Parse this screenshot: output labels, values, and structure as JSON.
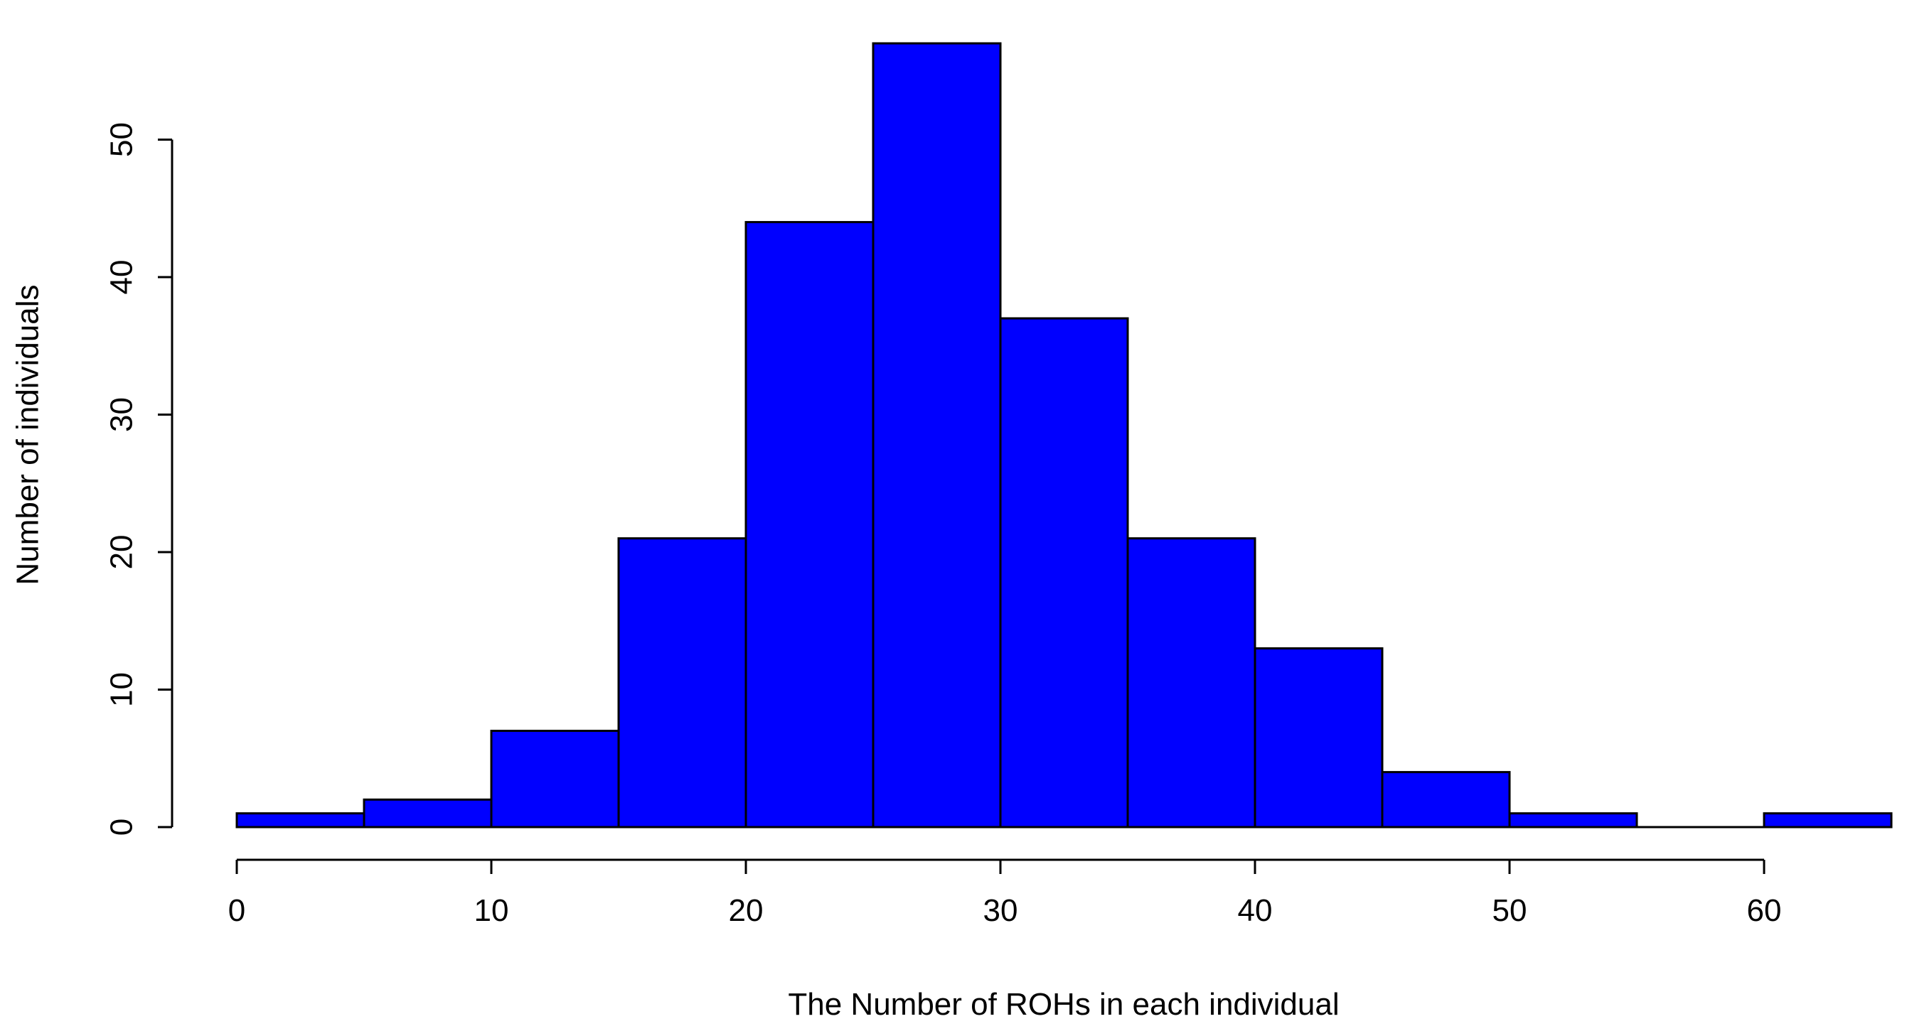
{
  "chart_data": {
    "type": "bar",
    "title": "",
    "xlabel": "The Number of ROHs in each individual",
    "ylabel": "Number of individuals",
    "bins": [
      {
        "start": 0,
        "end": 5,
        "count": 1
      },
      {
        "start": 5,
        "end": 10,
        "count": 2
      },
      {
        "start": 10,
        "end": 15,
        "count": 7
      },
      {
        "start": 15,
        "end": 20,
        "count": 21
      },
      {
        "start": 20,
        "end": 25,
        "count": 44
      },
      {
        "start": 25,
        "end": 30,
        "count": 57
      },
      {
        "start": 30,
        "end": 35,
        "count": 37
      },
      {
        "start": 35,
        "end": 40,
        "count": 21
      },
      {
        "start": 40,
        "end": 45,
        "count": 13
      },
      {
        "start": 45,
        "end": 50,
        "count": 4
      },
      {
        "start": 50,
        "end": 55,
        "count": 1
      },
      {
        "start": 55,
        "end": 60,
        "count": 0
      },
      {
        "start": 60,
        "end": 65,
        "count": 1
      }
    ],
    "xlim": [
      0,
      65
    ],
    "ylim": [
      0,
      57
    ],
    "x_ticks": [
      0,
      10,
      20,
      30,
      40,
      50,
      60
    ],
    "y_ticks": [
      0,
      10,
      20,
      30,
      40,
      50
    ],
    "x_tick_labels": [
      "0",
      "10",
      "20",
      "30",
      "40",
      "50",
      "60"
    ],
    "y_tick_labels": [
      "0",
      "10",
      "20",
      "30",
      "40",
      "50"
    ],
    "grid": false,
    "legend": "none",
    "colors": {
      "bar_fill": "#0000FF",
      "bar_stroke": "#000000",
      "axis": "#000000",
      "background": "#FFFFFF"
    }
  }
}
